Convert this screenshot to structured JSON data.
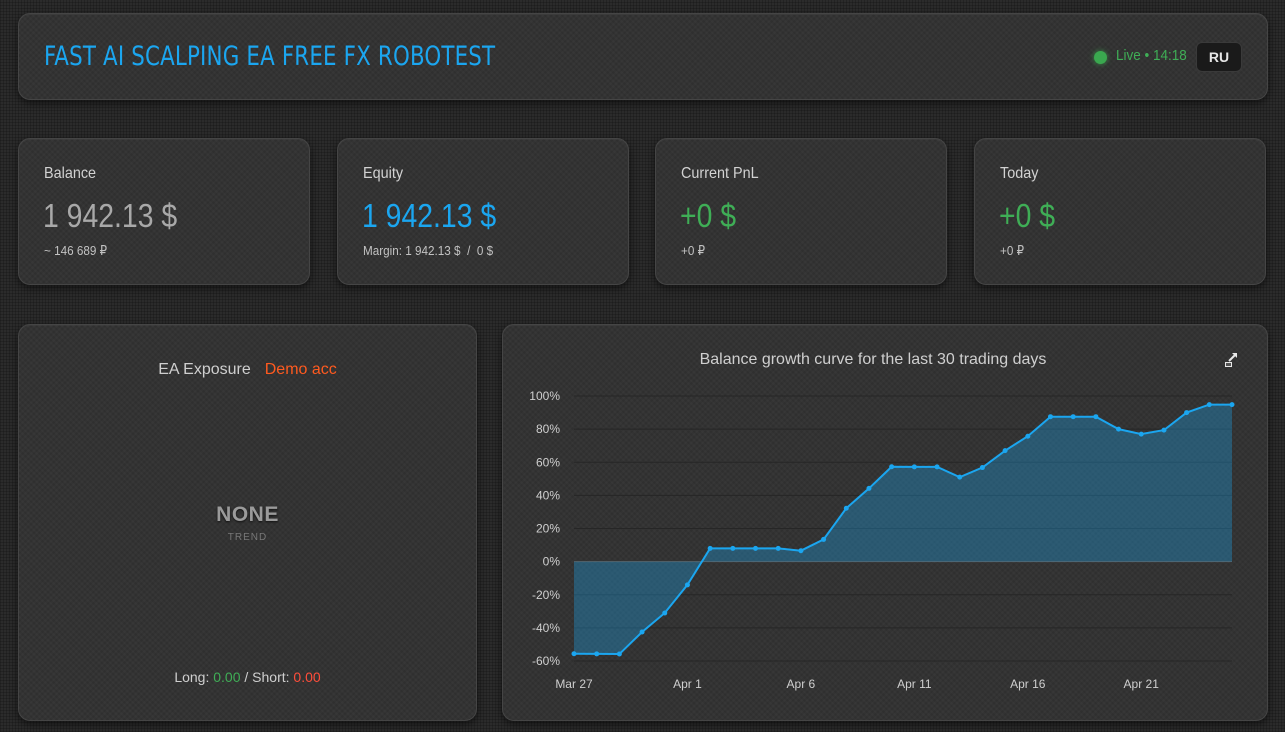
{
  "header": {
    "title": "FAST AI SCALPING EA FREE FX ROBOTEST",
    "live_status": "Live • 14:18",
    "language_button": "RU",
    "live_dot_color": "#3aa84f"
  },
  "stats": {
    "balance": {
      "label": "Balance",
      "value": "1 942.13 $",
      "sub": "~ 146 689 ₽"
    },
    "equity": {
      "label": "Equity",
      "value": "1 942.13 $",
      "sub": "Margin: 1 942.13 $  /  0 $"
    },
    "current_pnl": {
      "label": "Current PnL",
      "value": "+0 $",
      "sub": "+0 ₽"
    },
    "today": {
      "label": "Today",
      "value": "+0 $",
      "sub": "+0 ₽"
    }
  },
  "exposure": {
    "title": "EA Exposure",
    "badge": "Demo acc",
    "trend_value": "NONE",
    "trend_label": "TREND",
    "long_label": "Long:",
    "long_value": "0.00",
    "separator": "/",
    "short_label": "Short:",
    "short_value": "0.00"
  },
  "chart_data": {
    "type": "area",
    "title": "Balance growth curve for the last 30 trading days",
    "xlabel": "",
    "ylabel": "",
    "ylim": [
      -60,
      100
    ],
    "y_ticks": [
      100,
      80,
      60,
      40,
      20,
      0,
      -20,
      -40,
      -60
    ],
    "y_tick_labels": [
      "100%",
      "80%",
      "60%",
      "40%",
      "20%",
      "0%",
      "-20%",
      "-40%",
      "-60%"
    ],
    "x_ticks": [
      "Mar 27",
      "Apr 1",
      "Apr 6",
      "Apr 11",
      "Apr 16",
      "Apr 21"
    ],
    "x_tick_index": [
      0,
      5,
      10,
      15,
      20,
      25
    ],
    "grid": true,
    "legend": "none",
    "line_color": "#1ba6f0",
    "series": [
      {
        "values": [
          -55.6,
          -55.7,
          -55.8,
          -42.5,
          -31,
          -14,
          8,
          8,
          8,
          8,
          6.6,
          13.4,
          32.2,
          44.2,
          57.3,
          57.2,
          57.2,
          51,
          56.8,
          67,
          75.7,
          87.5,
          87.5,
          87.5,
          80,
          77,
          79.4,
          90,
          94.8,
          94.8
        ]
      }
    ]
  }
}
